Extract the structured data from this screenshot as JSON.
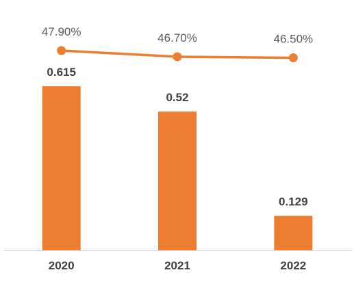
{
  "chart_data": {
    "type": "bar",
    "categories": [
      "2020",
      "2021",
      "2022"
    ],
    "series": [
      {
        "type": "bar",
        "values": [
          0.615,
          0.52,
          0.129
        ],
        "labels": [
          "0.615",
          "0.52",
          "0.129"
        ]
      },
      {
        "type": "line",
        "values": [
          47.9,
          46.7,
          46.5
        ],
        "labels": [
          "47.90%",
          "46.70%",
          "46.50%"
        ]
      }
    ],
    "colors": {
      "bar": "#ED7D31",
      "line": "#ED7D31",
      "axis": "#D9D9D9"
    },
    "grid": false,
    "legend": "none"
  }
}
